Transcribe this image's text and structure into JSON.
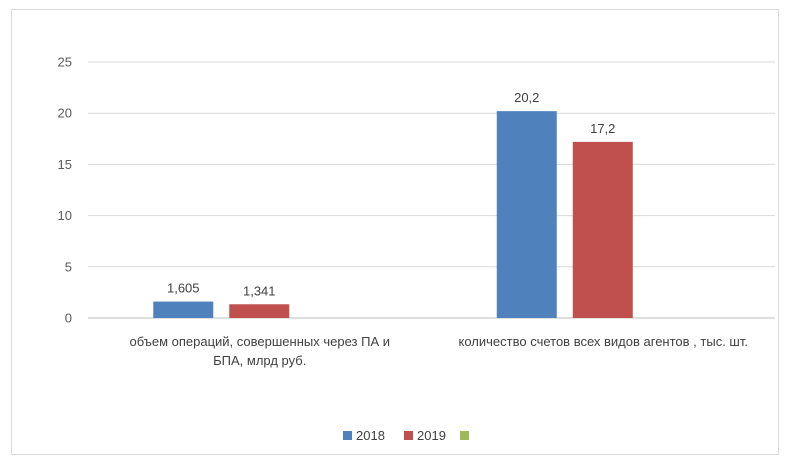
{
  "chart_data": {
    "type": "bar",
    "categories": [
      [
        "объем операций, совершенных через ПА и",
        "БПА, млрд руб."
      ],
      [
        "количество счетов всех видов агентов , тыс. шт."
      ]
    ],
    "series": [
      {
        "name": "2018",
        "values": [
          1.605,
          20.2
        ],
        "labels": [
          "1,605",
          "20,2"
        ],
        "color": "#4f81bd"
      },
      {
        "name": "2019",
        "values": [
          1.341,
          17.2
        ],
        "labels": [
          "1,341",
          "17,2"
        ],
        "color": "#c0504d"
      },
      {
        "name": "",
        "values": [
          null,
          null
        ],
        "labels": [
          "",
          ""
        ],
        "color": "#9bbb59"
      }
    ],
    "yticks": [
      "0",
      "5",
      "10",
      "15",
      "20",
      "25"
    ],
    "ylim": [
      0,
      25
    ],
    "grid": true,
    "legend": "bottom"
  }
}
